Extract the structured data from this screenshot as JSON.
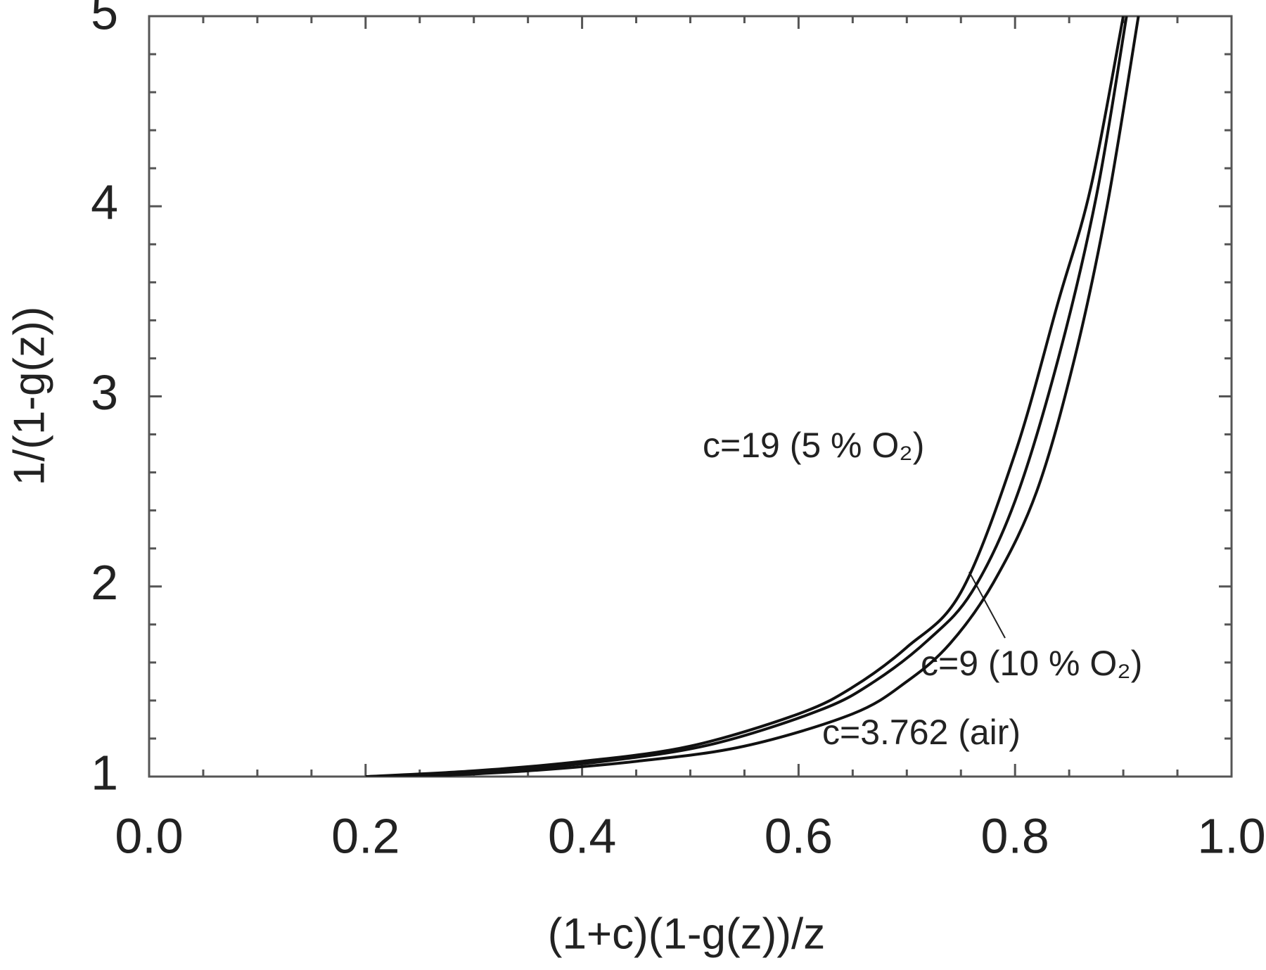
{
  "chart_data": {
    "type": "line",
    "xlabel": "(1+c)(1-g(z))/z",
    "ylabel": "1/(1-g(z))",
    "xlim": [
      0,
      1
    ],
    "ylim": [
      1,
      5
    ],
    "xticks": [
      {
        "value": 0,
        "label": "0.0"
      },
      0.2,
      0.4,
      0.6,
      0.8,
      {
        "value": 1,
        "label": "1.0"
      }
    ],
    "yticks": [
      1,
      2,
      3,
      4,
      5
    ],
    "color": "#111111",
    "series": [
      {
        "name": "c=19 (5 % O₂)",
        "x": [
          0.2,
          0.3,
          0.4,
          0.5,
          0.6,
          0.65,
          0.7,
          0.75,
          0.8,
          0.84,
          0.87,
          0.9
        ],
        "values": [
          1.0,
          1.03,
          1.08,
          1.16,
          1.33,
          1.47,
          1.68,
          1.97,
          2.7,
          3.5,
          4.1,
          5.0
        ]
      },
      {
        "name": "c=9 (10 % O₂)",
        "x": [
          0.22,
          0.32,
          0.42,
          0.52,
          0.62,
          0.67,
          0.72,
          0.76,
          0.8,
          0.84,
          0.875,
          0.903
        ],
        "values": [
          1.0,
          1.03,
          1.08,
          1.17,
          1.35,
          1.5,
          1.72,
          1.97,
          2.45,
          3.2,
          4.05,
          5.0
        ]
      },
      {
        "name": "c=3.762 (air)",
        "x": [
          0.25,
          0.35,
          0.45,
          0.55,
          0.65,
          0.7,
          0.74,
          0.78,
          0.82,
          0.855,
          0.885,
          0.914
        ],
        "values": [
          1.0,
          1.03,
          1.08,
          1.16,
          1.33,
          1.5,
          1.7,
          2.02,
          2.5,
          3.2,
          4.0,
          5.0
        ]
      }
    ]
  }
}
